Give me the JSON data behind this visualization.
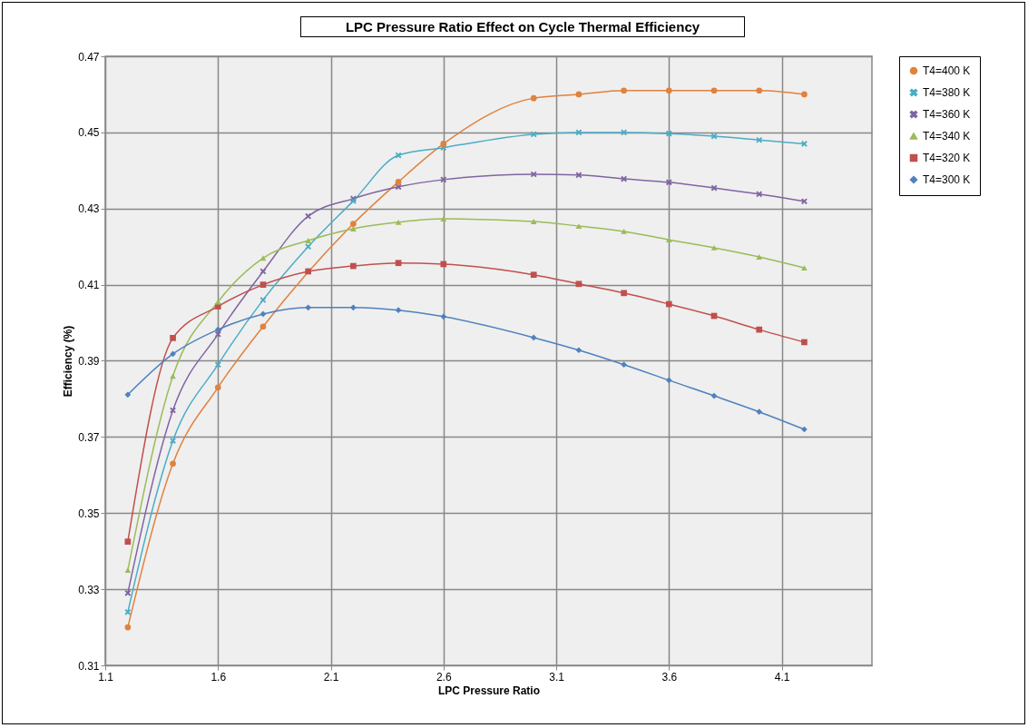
{
  "chart_data": {
    "type": "line",
    "title": "LPC Pressure Ratio Effect on Cycle Thermal Efficiency",
    "xlabel": "LPC Pressure Ratio",
    "ylabel": "Efficiency (%)",
    "x": [
      1.2,
      1.4,
      1.6,
      1.8,
      2.0,
      2.2,
      2.4,
      2.6,
      3.0,
      3.2,
      3.4,
      3.6,
      3.8,
      4.0,
      4.2
    ],
    "xlim": [
      1.1,
      4.5
    ],
    "xticks": [
      1.1,
      1.6,
      2.1,
      2.6,
      3.1,
      3.6,
      4.1
    ],
    "ylim": [
      0.31,
      0.47
    ],
    "yticks": [
      0.31,
      0.33,
      0.35,
      0.37,
      0.39,
      0.41,
      0.43,
      0.45,
      0.47
    ],
    "grid": true,
    "legend": "right",
    "series": [
      {
        "name": "T4=400 K",
        "color": "#e0823d",
        "marker": "circle",
        "x": [
          1.2,
          1.4,
          1.6,
          1.8,
          2.2,
          2.4,
          2.6,
          3.0,
          3.2,
          3.4,
          3.6,
          3.8,
          4.0,
          4.2
        ],
        "values": [
          0.32,
          0.363,
          0.383,
          0.399,
          0.426,
          0.437,
          0.447,
          0.459,
          0.46,
          0.461,
          0.461,
          0.461,
          0.461,
          0.46
        ]
      },
      {
        "name": "T4=380 K",
        "color": "#4bacc6",
        "marker": "cross",
        "values": [
          0.324,
          0.369,
          0.389,
          0.406,
          0.42,
          0.432,
          0.444,
          0.446,
          0.4495,
          0.45,
          0.45,
          0.4497,
          0.449,
          0.448,
          0.447
        ]
      },
      {
        "name": "T4=360 K",
        "color": "#8064a2",
        "marker": "cross",
        "values": [
          0.329,
          0.377,
          0.397,
          0.4135,
          0.428,
          0.4326,
          0.4357,
          0.4376,
          0.439,
          0.4388,
          0.4378,
          0.4369,
          0.4354,
          0.4338,
          0.4319
        ]
      },
      {
        "name": "T4=340 K",
        "color": "#9bbb59",
        "marker": "triangle",
        "values": [
          0.335,
          0.386,
          0.4055,
          0.417,
          0.4216,
          0.4247,
          0.4264,
          0.4273,
          0.4266,
          0.4254,
          0.424,
          0.4218,
          0.4197,
          0.4173,
          0.4144
        ]
      },
      {
        "name": "T4=320 K",
        "color": "#c0504d",
        "marker": "square",
        "values": [
          0.3425,
          0.396,
          0.4043,
          0.41,
          0.4135,
          0.4149,
          0.4157,
          0.4154,
          0.4126,
          0.4102,
          0.4078,
          0.4049,
          0.4018,
          0.3982,
          0.3949
        ]
      },
      {
        "name": "T4=300 K",
        "color": "#4f81bd",
        "marker": "diamond",
        "values": [
          0.3811,
          0.3918,
          0.3982,
          0.4023,
          0.404,
          0.404,
          0.4033,
          0.4016,
          0.3961,
          0.3928,
          0.389,
          0.3849,
          0.3808,
          0.3766,
          0.372
        ]
      }
    ]
  }
}
